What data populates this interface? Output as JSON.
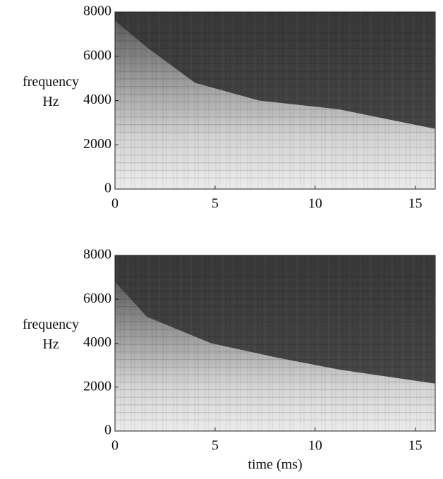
{
  "chart_data": [
    {
      "type": "spectrogram",
      "ylabel": [
        "frequency",
        "Hz"
      ],
      "xlim": [
        0,
        16
      ],
      "xticks": [
        0,
        5,
        10,
        15
      ],
      "ylim": [
        0,
        8000
      ],
      "yticks": [
        0,
        2000,
        4000,
        6000,
        8000
      ]
    },
    {
      "type": "spectrogram",
      "ylabel": [
        "frequency",
        "Hz"
      ],
      "xlabel": "time (ms)",
      "xlim": [
        0,
        16
      ],
      "xticks": [
        0,
        5,
        10,
        15
      ],
      "ylim": [
        0,
        8000
      ],
      "yticks": [
        0,
        2000,
        4000,
        6000,
        8000
      ]
    }
  ]
}
